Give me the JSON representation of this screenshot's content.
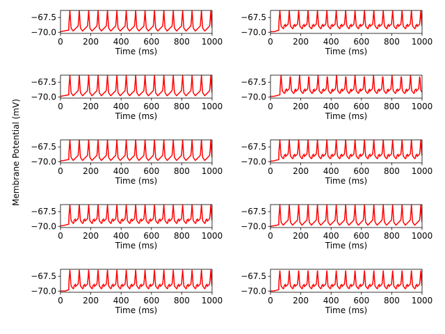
{
  "figure": {
    "shared_ylabel": "Membrane Potential (mV)",
    "trace_color": "#ff0000"
  },
  "chart_data": [
    {
      "type": "line",
      "panel": "row1-left",
      "xlabel": "Time (ms)",
      "xlim": [
        0,
        1000
      ],
      "ylim": [
        -70.2,
        -66.3
      ],
      "xticks": [
        0,
        200,
        400,
        600,
        800,
        1000
      ],
      "yticks": [
        -70.0,
        -67.5
      ],
      "ytick_labels": [
        "−70.0",
        "−67.5"
      ],
      "baseline": -69.9,
      "trough": -69.8,
      "peak": -66.3,
      "onset": 0,
      "first_peak": 62,
      "period": 62,
      "subthreshold": false
    },
    {
      "type": "line",
      "panel": "row1-right",
      "xlabel": "Time (ms)",
      "xlim": [
        0,
        1000
      ],
      "ylim": [
        -70.2,
        -66.3
      ],
      "xticks": [
        0,
        200,
        400,
        600,
        800,
        1000
      ],
      "yticks": [
        -70.0,
        -67.5
      ],
      "ytick_labels": [
        "−70.0",
        "−67.5"
      ],
      "baseline": -69.9,
      "trough": -69.4,
      "peak": -66.3,
      "onset": 25,
      "first_peak": 62,
      "period": 62,
      "subthreshold": true
    },
    {
      "type": "line",
      "panel": "row2-left",
      "xlabel": "Time (ms)",
      "xlim": [
        0,
        1000
      ],
      "ylim": [
        -70.2,
        -66.3
      ],
      "xticks": [
        0,
        200,
        400,
        600,
        800,
        1000
      ],
      "yticks": [
        -70.0,
        -67.5
      ],
      "ytick_labels": [
        "−70.0",
        "−67.5"
      ],
      "baseline": -69.9,
      "trough": -69.8,
      "peak": -66.3,
      "onset": 0,
      "first_peak": 62,
      "period": 62,
      "subthreshold": false
    },
    {
      "type": "line",
      "panel": "row2-right",
      "xlabel": "Time (ms)",
      "xlim": [
        0,
        1000
      ],
      "ylim": [
        -70.2,
        -66.3
      ],
      "xticks": [
        0,
        200,
        400,
        600,
        800,
        1000
      ],
      "yticks": [
        -70.0,
        -67.5
      ],
      "ytick_labels": [
        "−70.0",
        "−67.5"
      ],
      "baseline": -69.9,
      "trough": -69.4,
      "peak": -66.3,
      "onset": 20,
      "first_peak": 70,
      "period": 61,
      "subthreshold": true
    },
    {
      "type": "line",
      "panel": "row3-left",
      "xlabel": "Time (ms)",
      "xlim": [
        0,
        1000
      ],
      "ylim": [
        -70.2,
        -66.3
      ],
      "xticks": [
        0,
        200,
        400,
        600,
        800,
        1000
      ],
      "yticks": [
        -70.0,
        -67.5
      ],
      "ytick_labels": [
        "−70.0",
        "−67.5"
      ],
      "baseline": -69.9,
      "trough": -69.8,
      "peak": -66.3,
      "onset": 0,
      "first_peak": 62,
      "period": 62,
      "subthreshold": false
    },
    {
      "type": "line",
      "panel": "row3-right",
      "xlabel": "Time (ms)",
      "xlim": [
        0,
        1000
      ],
      "ylim": [
        -70.2,
        -66.3
      ],
      "xticks": [
        0,
        200,
        400,
        600,
        800,
        1000
      ],
      "yticks": [
        -70.0,
        -67.5
      ],
      "ytick_labels": [
        "−70.0",
        "−67.5"
      ],
      "baseline": -69.9,
      "trough": -69.5,
      "peak": -66.3,
      "onset": 15,
      "first_peak": 62,
      "period": 62,
      "subthreshold": true
    },
    {
      "type": "line",
      "panel": "row4-left",
      "xlabel": "Time (ms)",
      "xlim": [
        0,
        1000
      ],
      "ylim": [
        -70.2,
        -66.3
      ],
      "xticks": [
        0,
        200,
        400,
        600,
        800,
        1000
      ],
      "yticks": [
        -70.0,
        -67.5
      ],
      "ytick_labels": [
        "−70.0",
        "−67.5"
      ],
      "baseline": -69.9,
      "trough": -69.5,
      "peak": -66.3,
      "onset": 10,
      "first_peak": 62,
      "period": 62,
      "subthreshold": true
    },
    {
      "type": "line",
      "panel": "row4-right",
      "xlabel": "Time (ms)",
      "xlim": [
        0,
        1000
      ],
      "ylim": [
        -70.2,
        -66.3
      ],
      "xticks": [
        0,
        200,
        400,
        600,
        800,
        1000
      ],
      "yticks": [
        -70.0,
        -67.5
      ],
      "ytick_labels": [
        "−70.0",
        "−67.5"
      ],
      "baseline": -70.0,
      "trough": -69.8,
      "peak": -66.3,
      "onset": 0,
      "first_peak": 62,
      "period": 62,
      "subthreshold": false
    },
    {
      "type": "line",
      "panel": "row5-left",
      "xlabel": "Time (ms)",
      "xlim": [
        0,
        1000
      ],
      "ylim": [
        -70.2,
        -66.3
      ],
      "xticks": [
        0,
        200,
        400,
        600,
        800,
        1000
      ],
      "yticks": [
        -70.0,
        -67.5
      ],
      "ytick_labels": [
        "−70.0",
        "−67.5"
      ],
      "baseline": -70.0,
      "trough": -69.6,
      "peak": -66.4,
      "onset": 30,
      "first_peak": 62,
      "period": 62,
      "subthreshold": true
    },
    {
      "type": "line",
      "panel": "row5-right",
      "xlabel": "Time (ms)",
      "xlim": [
        0,
        1000
      ],
      "ylim": [
        -70.2,
        -66.3
      ],
      "xticks": [
        0,
        200,
        400,
        600,
        800,
        1000
      ],
      "yticks": [
        -70.0,
        -67.5
      ],
      "ytick_labels": [
        "−70.0",
        "−67.5"
      ],
      "baseline": -70.0,
      "trough": -69.6,
      "peak": -66.5,
      "onset": 20,
      "first_peak": 62,
      "period": 62,
      "subthreshold": true
    }
  ]
}
